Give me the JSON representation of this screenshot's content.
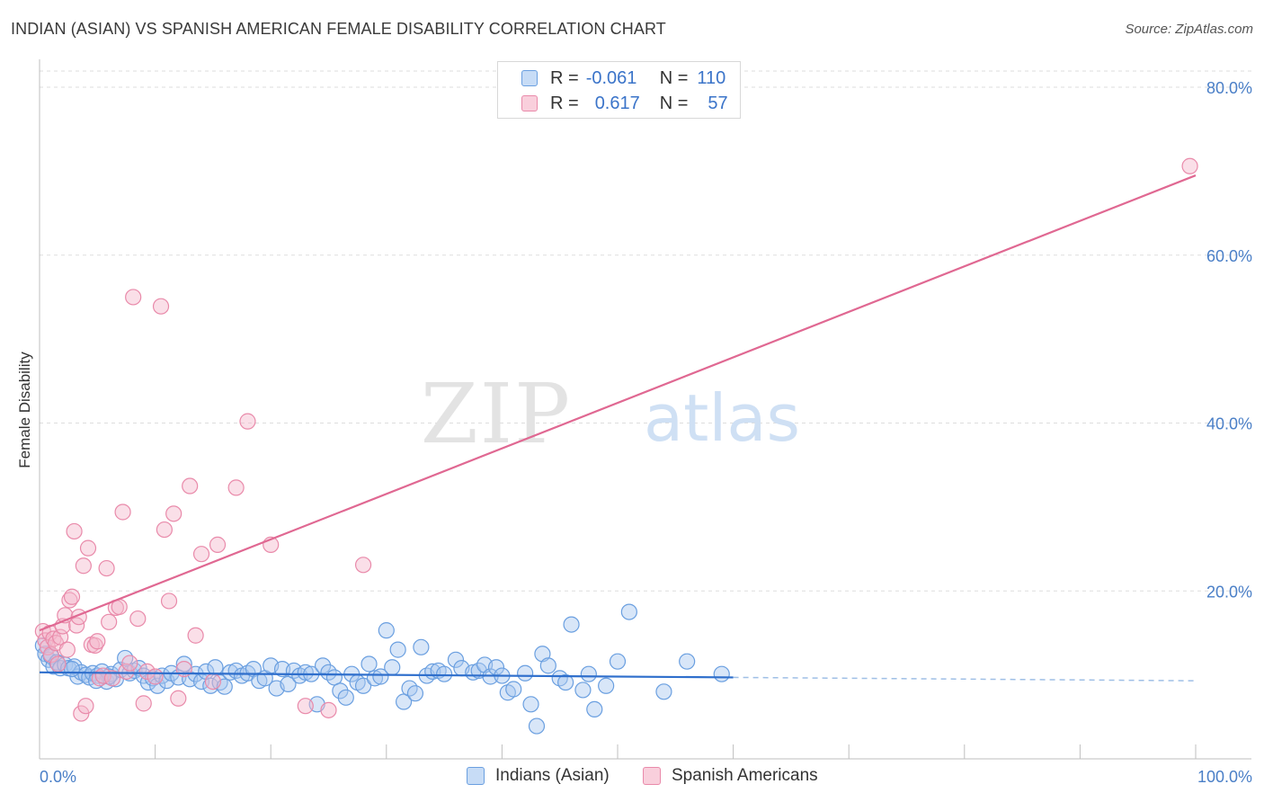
{
  "header": {
    "title": "INDIAN (ASIAN) VS SPANISH AMERICAN FEMALE DISABILITY CORRELATION CHART",
    "source": "Source: ZipAtlas.com"
  },
  "watermark": {
    "zip": "ZIP",
    "atlas": "atlas"
  },
  "legend": {
    "rows": [
      {
        "r_label": "R =",
        "r_value": "-0.061",
        "n_label": "N =",
        "n_value": "110"
      },
      {
        "r_label": "R =",
        "r_value": "0.617",
        "n_label": "N =",
        "n_value": "57"
      }
    ]
  },
  "bottom_legend": {
    "series1": "Indians (Asian)",
    "series2": "Spanish Americans"
  },
  "colors": {
    "series1_fill": "#a8c8f0",
    "series1_stroke": "#6a9fe0",
    "series1_line": "#2f6fcc",
    "series2_fill": "#f5b8cc",
    "series2_stroke": "#e98aaa",
    "series2_line": "#e06892",
    "axis_label": "#4a7fc7",
    "grid": "#dddddd"
  },
  "chart_data": {
    "type": "scatter",
    "title": "INDIAN (ASIAN) VS SPANISH AMERICAN FEMALE DISABILITY CORRELATION CHART",
    "xlabel": "",
    "ylabel": "Female Disability",
    "xlim": [
      0,
      100
    ],
    "ylim": [
      0,
      80
    ],
    "x_tick_labels": [
      "0.0%",
      "100.0%"
    ],
    "y_tick_labels": [
      "20.0%",
      "40.0%",
      "60.0%",
      "80.0%"
    ],
    "y_ticks": [
      20,
      40,
      60,
      80
    ],
    "grid": "horizontal dashed",
    "legend_placement": "top-center",
    "series": [
      {
        "name": "Indians (Asian)",
        "r": -0.061,
        "n": 110,
        "trend": {
          "x": [
            0,
            60
          ],
          "y": [
            10.3,
            9.7
          ],
          "dashed_extension": [
            60,
            100,
            9.7,
            9.3
          ]
        },
        "points": [
          [
            0.3,
            13.5
          ],
          [
            0.5,
            12.5
          ],
          [
            0.8,
            11.8
          ],
          [
            1,
            12.2
          ],
          [
            1.2,
            11
          ],
          [
            1.5,
            11.5
          ],
          [
            1.8,
            10.8
          ],
          [
            2.2,
            11.2
          ],
          [
            2.5,
            10.8
          ],
          [
            3,
            11
          ],
          [
            3.3,
            9.8
          ],
          [
            3.6,
            10.3
          ],
          [
            4,
            10
          ],
          [
            4.3,
            9.7
          ],
          [
            4.6,
            10.2
          ],
          [
            5,
            9.9
          ],
          [
            5.4,
            10.4
          ],
          [
            5.8,
            9.2
          ],
          [
            6.2,
            10.1
          ],
          [
            6.6,
            9.5
          ],
          [
            7,
            10.6
          ],
          [
            7.4,
            12
          ],
          [
            7.8,
            10.2
          ],
          [
            8.2,
            10.5
          ],
          [
            8.6,
            10.8
          ],
          [
            9,
            9.9
          ],
          [
            9.4,
            9.1
          ],
          [
            9.8,
            9.6
          ],
          [
            10.2,
            8.7
          ],
          [
            10.6,
            9.9
          ],
          [
            11,
            9.3
          ],
          [
            11.4,
            10.2
          ],
          [
            12,
            9.7
          ],
          [
            12.5,
            11.3
          ],
          [
            13,
            9.5
          ],
          [
            13.5,
            10.1
          ],
          [
            14,
            9.2
          ],
          [
            14.4,
            10.4
          ],
          [
            14.8,
            8.7
          ],
          [
            15.2,
            10.9
          ],
          [
            15.6,
            9.1
          ],
          [
            16,
            8.6
          ],
          [
            16.5,
            10.3
          ],
          [
            17,
            10.5
          ],
          [
            17.5,
            9.9
          ],
          [
            18,
            10.2
          ],
          [
            18.5,
            10.7
          ],
          [
            19,
            9.3
          ],
          [
            19.5,
            9.6
          ],
          [
            20,
            11.1
          ],
          [
            20.5,
            8.4
          ],
          [
            21,
            10.7
          ],
          [
            21.5,
            8.9
          ],
          [
            22,
            10.5
          ],
          [
            22.5,
            9.9
          ],
          [
            23,
            10.3
          ],
          [
            23.5,
            10.1
          ],
          [
            24,
            6.5
          ],
          [
            24.5,
            11.1
          ],
          [
            25,
            10.3
          ],
          [
            25.5,
            9.7
          ],
          [
            26,
            8.1
          ],
          [
            26.5,
            7.3
          ],
          [
            27,
            10.1
          ],
          [
            27.5,
            9.1
          ],
          [
            28,
            8.7
          ],
          [
            28.5,
            11.3
          ],
          [
            29,
            9.6
          ],
          [
            29.5,
            9.8
          ],
          [
            30,
            15.3
          ],
          [
            30.5,
            10.9
          ],
          [
            31,
            13
          ],
          [
            31.5,
            6.8
          ],
          [
            32,
            8.4
          ],
          [
            32.5,
            7.8
          ],
          [
            33,
            13.3
          ],
          [
            33.5,
            9.9
          ],
          [
            34,
            10.4
          ],
          [
            34.5,
            10.5
          ],
          [
            35,
            10.1
          ],
          [
            36,
            11.8
          ],
          [
            36.5,
            10.8
          ],
          [
            37.5,
            10.3
          ],
          [
            38,
            10.5
          ],
          [
            38.5,
            11.2
          ],
          [
            39,
            9.8
          ],
          [
            39.5,
            10.9
          ],
          [
            40,
            9.9
          ],
          [
            40.5,
            7.9
          ],
          [
            41,
            8.3
          ],
          [
            42,
            10.2
          ],
          [
            42.5,
            6.5
          ],
          [
            43,
            3.9
          ],
          [
            43.5,
            12.5
          ],
          [
            44,
            11.1
          ],
          [
            45,
            9.6
          ],
          [
            45.5,
            9.1
          ],
          [
            46,
            16
          ],
          [
            47,
            8.2
          ],
          [
            47.5,
            10.1
          ],
          [
            48,
            5.9
          ],
          [
            49,
            8.7
          ],
          [
            50,
            11.6
          ],
          [
            51,
            17.5
          ],
          [
            54,
            8
          ],
          [
            56,
            11.6
          ],
          [
            59,
            10.1
          ],
          [
            2.8,
            10.7
          ],
          [
            6,
            9.8
          ],
          [
            4.9,
            9.3
          ]
        ]
      },
      {
        "name": "Spanish Americans",
        "r": 0.617,
        "n": 57,
        "trend": {
          "x": [
            0,
            100
          ],
          "y": [
            15.3,
            69.5
          ]
        },
        "points": [
          [
            0.3,
            15.2
          ],
          [
            0.5,
            14.1
          ],
          [
            0.7,
            13.3
          ],
          [
            0.9,
            15
          ],
          [
            1,
            12.4
          ],
          [
            1.2,
            14.3
          ],
          [
            1.4,
            13.8
          ],
          [
            1.6,
            11.3
          ],
          [
            1.8,
            14.5
          ],
          [
            2,
            15.8
          ],
          [
            2.2,
            17.1
          ],
          [
            2.4,
            13
          ],
          [
            2.6,
            18.9
          ],
          [
            2.8,
            19.3
          ],
          [
            3,
            27.1
          ],
          [
            3.2,
            15.9
          ],
          [
            3.4,
            16.9
          ],
          [
            3.6,
            5.4
          ],
          [
            3.8,
            23
          ],
          [
            4,
            6.3
          ],
          [
            4.2,
            25.1
          ],
          [
            4.5,
            13.6
          ],
          [
            4.8,
            13.5
          ],
          [
            5,
            14
          ],
          [
            5.2,
            9.6
          ],
          [
            5.5,
            9.9
          ],
          [
            5.8,
            22.7
          ],
          [
            6,
            16.3
          ],
          [
            6.3,
            9.6
          ],
          [
            6.6,
            18
          ],
          [
            6.9,
            18.1
          ],
          [
            7.2,
            29.4
          ],
          [
            7.5,
            10.4
          ],
          [
            7.8,
            11.4
          ],
          [
            8.1,
            55
          ],
          [
            8.5,
            16.7
          ],
          [
            9,
            6.6
          ],
          [
            9.3,
            10.4
          ],
          [
            10,
            9.8
          ],
          [
            10.5,
            53.9
          ],
          [
            10.8,
            27.3
          ],
          [
            11.2,
            18.8
          ],
          [
            11.6,
            29.2
          ],
          [
            12,
            7.2
          ],
          [
            12.5,
            10.7
          ],
          [
            13,
            32.5
          ],
          [
            13.5,
            14.7
          ],
          [
            14,
            24.4
          ],
          [
            15,
            9.2
          ],
          [
            15.4,
            25.5
          ],
          [
            17,
            32.3
          ],
          [
            18,
            40.2
          ],
          [
            20,
            25.5
          ],
          [
            23,
            6.3
          ],
          [
            25,
            5.8
          ],
          [
            28,
            23.1
          ],
          [
            99.5,
            70.6
          ]
        ]
      }
    ]
  }
}
